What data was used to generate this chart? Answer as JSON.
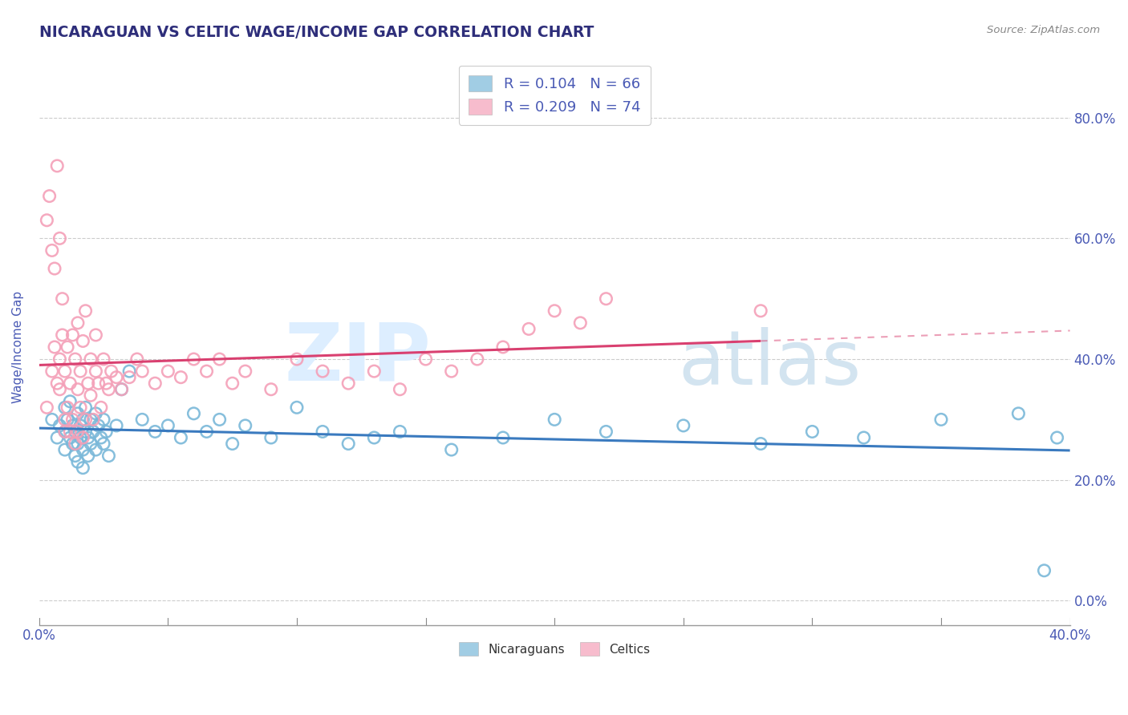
{
  "title": "NICARAGUAN VS CELTIC WAGE/INCOME GAP CORRELATION CHART",
  "source": "Source: ZipAtlas.com",
  "ylabel": "Wage/Income Gap",
  "xlim": [
    0.0,
    0.4
  ],
  "ylim": [
    -0.04,
    0.88
  ],
  "yticks": [
    0.0,
    0.2,
    0.4,
    0.6,
    0.8
  ],
  "xticks": [
    0.0,
    0.4
  ],
  "legend_label_blue": "Nicaraguans",
  "legend_label_pink": "Celtics",
  "blue_color": "#7ab8d9",
  "pink_color": "#f4a0b8",
  "blue_line_color": "#3a7abf",
  "pink_line_color": "#d94070",
  "title_color": "#2e2e7a",
  "tick_color": "#4a5ab5",
  "blue_scatter_x": [
    0.005,
    0.007,
    0.008,
    0.01,
    0.01,
    0.01,
    0.011,
    0.012,
    0.012,
    0.013,
    0.013,
    0.014,
    0.014,
    0.015,
    0.015,
    0.015,
    0.016,
    0.016,
    0.017,
    0.017,
    0.017,
    0.018,
    0.018,
    0.019,
    0.019,
    0.02,
    0.02,
    0.021,
    0.022,
    0.022,
    0.023,
    0.024,
    0.025,
    0.025,
    0.026,
    0.027,
    0.03,
    0.032,
    0.035,
    0.04,
    0.045,
    0.05,
    0.055,
    0.06,
    0.065,
    0.07,
    0.075,
    0.08,
    0.09,
    0.1,
    0.11,
    0.12,
    0.13,
    0.14,
    0.16,
    0.18,
    0.2,
    0.22,
    0.25,
    0.28,
    0.3,
    0.32,
    0.35,
    0.38,
    0.39,
    0.395
  ],
  "blue_scatter_y": [
    0.3,
    0.27,
    0.29,
    0.28,
    0.32,
    0.25,
    0.3,
    0.27,
    0.33,
    0.26,
    0.29,
    0.24,
    0.28,
    0.26,
    0.31,
    0.23,
    0.29,
    0.27,
    0.25,
    0.3,
    0.22,
    0.28,
    0.32,
    0.27,
    0.24,
    0.3,
    0.26,
    0.28,
    0.25,
    0.31,
    0.29,
    0.27,
    0.26,
    0.3,
    0.28,
    0.24,
    0.29,
    0.35,
    0.38,
    0.3,
    0.28,
    0.29,
    0.27,
    0.31,
    0.28,
    0.3,
    0.26,
    0.29,
    0.27,
    0.32,
    0.28,
    0.26,
    0.27,
    0.28,
    0.25,
    0.27,
    0.3,
    0.28,
    0.29,
    0.26,
    0.28,
    0.27,
    0.3,
    0.31,
    0.05,
    0.27
  ],
  "pink_scatter_x": [
    0.003,
    0.005,
    0.006,
    0.007,
    0.008,
    0.008,
    0.009,
    0.01,
    0.01,
    0.011,
    0.011,
    0.012,
    0.012,
    0.013,
    0.013,
    0.014,
    0.014,
    0.015,
    0.015,
    0.015,
    0.016,
    0.016,
    0.017,
    0.017,
    0.018,
    0.018,
    0.019,
    0.02,
    0.02,
    0.021,
    0.022,
    0.022,
    0.023,
    0.024,
    0.025,
    0.026,
    0.027,
    0.028,
    0.03,
    0.032,
    0.035,
    0.038,
    0.04,
    0.045,
    0.05,
    0.055,
    0.06,
    0.065,
    0.07,
    0.075,
    0.08,
    0.09,
    0.1,
    0.11,
    0.12,
    0.13,
    0.14,
    0.15,
    0.16,
    0.17,
    0.18,
    0.19,
    0.2,
    0.21,
    0.22,
    0.003,
    0.004,
    0.005,
    0.006,
    0.007,
    0.008,
    0.009,
    0.28,
    0.01
  ],
  "pink_scatter_y": [
    0.32,
    0.38,
    0.42,
    0.36,
    0.35,
    0.4,
    0.44,
    0.3,
    0.38,
    0.32,
    0.42,
    0.28,
    0.36,
    0.3,
    0.44,
    0.26,
    0.4,
    0.35,
    0.28,
    0.46,
    0.32,
    0.38,
    0.27,
    0.43,
    0.3,
    0.48,
    0.36,
    0.34,
    0.4,
    0.3,
    0.38,
    0.44,
    0.36,
    0.32,
    0.4,
    0.36,
    0.35,
    0.38,
    0.37,
    0.35,
    0.37,
    0.4,
    0.38,
    0.36,
    0.38,
    0.37,
    0.4,
    0.38,
    0.4,
    0.36,
    0.38,
    0.35,
    0.4,
    0.38,
    0.36,
    0.38,
    0.35,
    0.4,
    0.38,
    0.4,
    0.42,
    0.45,
    0.48,
    0.46,
    0.5,
    0.63,
    0.67,
    0.58,
    0.55,
    0.72,
    0.6,
    0.5,
    0.48,
    0.28
  ]
}
